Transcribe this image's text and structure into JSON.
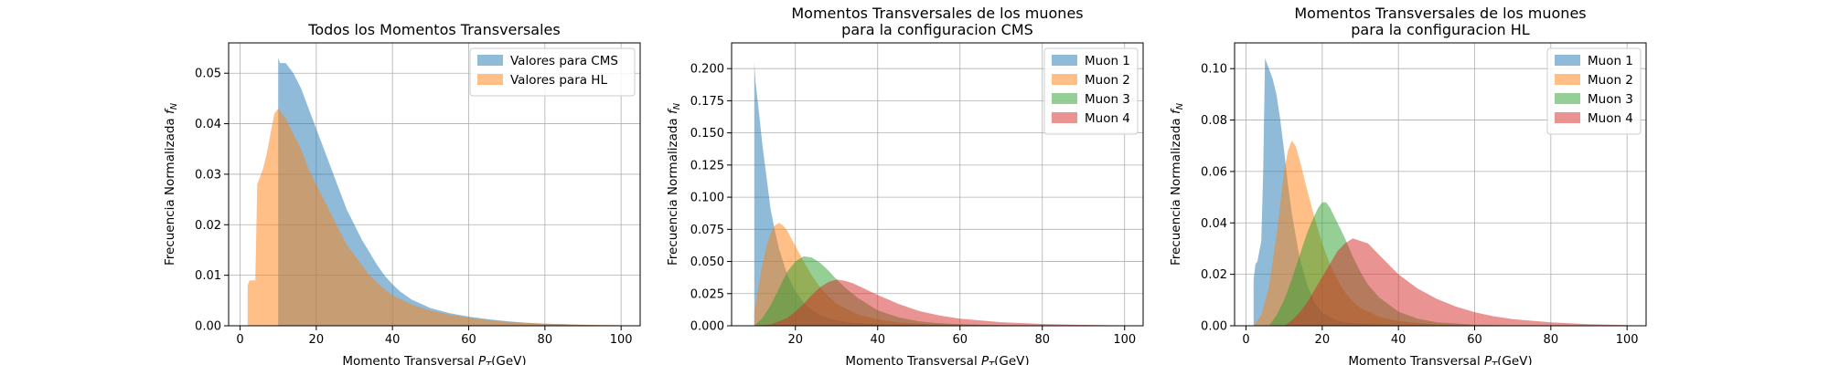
{
  "chart_data": [
    {
      "type": "area",
      "title": "Todos los Momentos Transversales",
      "xlabel": "Momento Transversal $P_T$(GeV)",
      "ylabel": "Frecuencia Normalizada $f_N$",
      "xlim": [
        -3,
        105
      ],
      "ylim": [
        0,
        0.056
      ],
      "xticks": [
        0,
        20,
        40,
        60,
        80,
        100
      ],
      "yticks": [
        0.0,
        0.01,
        0.02,
        0.03,
        0.04,
        0.05
      ],
      "ytick_labels": [
        "0.00",
        "0.01",
        "0.02",
        "0.03",
        "0.04",
        "0.05"
      ],
      "grid": true,
      "legend": "top-right",
      "series": [
        {
          "name": "Valores para CMS",
          "color": "#1f77b4",
          "x": [
            10,
            10.5,
            12,
            14,
            16,
            18,
            20,
            22,
            24,
            26,
            28,
            30,
            32,
            34,
            36,
            38,
            40,
            42,
            45,
            50,
            55,
            60,
            65,
            70,
            75,
            80,
            85,
            90,
            95,
            100
          ],
          "y": [
            0.053,
            0.052,
            0.052,
            0.05,
            0.047,
            0.043,
            0.039,
            0.035,
            0.031,
            0.027,
            0.023,
            0.02,
            0.017,
            0.0145,
            0.012,
            0.0099,
            0.0082,
            0.0068,
            0.0052,
            0.0035,
            0.0025,
            0.0018,
            0.0013,
            0.0009,
            0.0006,
            0.0004,
            0.0003,
            0.0002,
            0.0001,
            0.0001
          ]
        },
        {
          "name": "Valores para HL",
          "color": "#ff7f0e",
          "x": [
            2,
            2.5,
            4,
            4.5,
            6,
            7,
            8,
            9,
            10,
            11,
            12,
            14,
            16,
            18,
            20,
            22,
            24,
            26,
            28,
            30,
            32,
            34,
            36,
            38,
            40,
            45,
            50,
            55,
            60,
            65,
            70,
            80,
            90,
            100
          ],
          "y": [
            0.008,
            0.009,
            0.009,
            0.028,
            0.031,
            0.034,
            0.038,
            0.042,
            0.043,
            0.042,
            0.041,
            0.038,
            0.035,
            0.031,
            0.028,
            0.025,
            0.022,
            0.019,
            0.016,
            0.014,
            0.012,
            0.01,
            0.0085,
            0.0072,
            0.006,
            0.0042,
            0.003,
            0.0022,
            0.0016,
            0.0011,
            0.0008,
            0.0004,
            0.0002,
            0.0001
          ]
        }
      ]
    },
    {
      "type": "area",
      "title": "Momentos Transversales de los muones\npara la configuracion CMS",
      "xlabel": "Momento Transversal $P_T$(GeV)",
      "ylabel": "Frecuencia Normalizada $f_N$",
      "xlim": [
        4.5,
        104.5
      ],
      "ylim": [
        0,
        0.22
      ],
      "xticks": [
        20,
        40,
        60,
        80,
        100
      ],
      "yticks": [
        0.0,
        0.025,
        0.05,
        0.075,
        0.1,
        0.125,
        0.15,
        0.175,
        0.2
      ],
      "ytick_labels": [
        "0.000",
        "0.025",
        "0.050",
        "0.075",
        "0.100",
        "0.125",
        "0.150",
        "0.175",
        "0.200"
      ],
      "grid": true,
      "legend": "top-right",
      "series": [
        {
          "name": "Muon 1",
          "color": "#1f77b4",
          "x": [
            10,
            10.3,
            11,
            12,
            13,
            14,
            15,
            16,
            18,
            20,
            22,
            24,
            26,
            28,
            30,
            35,
            40,
            45,
            50,
            60,
            70,
            80,
            100
          ],
          "y": [
            0.205,
            0.19,
            0.17,
            0.14,
            0.115,
            0.09,
            0.074,
            0.06,
            0.04,
            0.027,
            0.018,
            0.012,
            0.0085,
            0.006,
            0.0042,
            0.002,
            0.0011,
            0.0007,
            0.0004,
            0.0002,
            0.0001,
            5e-05,
            0
          ]
        },
        {
          "name": "Muon 2",
          "color": "#ff7f0e",
          "x": [
            10,
            11,
            12,
            13,
            14,
            15,
            16,
            17,
            18,
            19,
            20,
            22,
            24,
            26,
            28,
            30,
            35,
            40,
            45,
            50,
            60,
            70,
            80,
            100
          ],
          "y": [
            0.01,
            0.03,
            0.048,
            0.062,
            0.072,
            0.078,
            0.08,
            0.078,
            0.074,
            0.068,
            0.062,
            0.05,
            0.039,
            0.03,
            0.023,
            0.017,
            0.009,
            0.005,
            0.0028,
            0.0016,
            0.0006,
            0.0002,
            0.0001,
            0
          ]
        },
        {
          "name": "Muon 3",
          "color": "#2ca02c",
          "x": [
            10,
            12,
            14,
            16,
            18,
            20,
            22,
            24,
            26,
            28,
            30,
            32,
            35,
            40,
            45,
            50,
            55,
            60,
            70,
            80,
            100
          ],
          "y": [
            0.0,
            0.006,
            0.016,
            0.029,
            0.042,
            0.05,
            0.054,
            0.053,
            0.049,
            0.043,
            0.036,
            0.03,
            0.022,
            0.012,
            0.0065,
            0.0035,
            0.002,
            0.0012,
            0.0004,
            0.0002,
            0
          ]
        },
        {
          "name": "Muon 4",
          "color": "#d62728",
          "x": [
            10,
            14,
            18,
            20,
            22,
            24,
            26,
            28,
            30,
            32,
            34,
            36,
            40,
            45,
            50,
            55,
            60,
            70,
            80,
            90,
            100
          ],
          "y": [
            0.0,
            0.001,
            0.006,
            0.011,
            0.017,
            0.024,
            0.03,
            0.034,
            0.036,
            0.035,
            0.033,
            0.03,
            0.024,
            0.017,
            0.0115,
            0.008,
            0.0055,
            0.0028,
            0.0014,
            0.0007,
            0.0003
          ]
        }
      ]
    },
    {
      "type": "area",
      "title": "Momentos Transversales de los muones\npara la configuracion HL",
      "xlabel": "Momento Transversal $P_T$(GeV)",
      "ylabel": "Frecuencia Normalizada $f_N$",
      "xlim": [
        -3,
        105
      ],
      "ylim": [
        0,
        0.11
      ],
      "xticks": [
        0,
        20,
        40,
        60,
        80,
        100
      ],
      "yticks": [
        0.0,
        0.02,
        0.04,
        0.06,
        0.08,
        0.1
      ],
      "ytick_labels": [
        "0.00",
        "0.02",
        "0.04",
        "0.06",
        "0.08",
        "0.10"
      ],
      "grid": true,
      "legend": "top-right",
      "series": [
        {
          "name": "Muon 1",
          "color": "#1f77b4",
          "x": [
            2,
            2.5,
            3,
            4,
            4.5,
            5,
            6,
            7,
            8,
            9,
            10,
            11,
            12,
            14,
            16,
            18,
            20,
            24,
            28,
            35,
            40,
            50,
            60,
            100
          ],
          "y": [
            0.018,
            0.024,
            0.025,
            0.033,
            0.06,
            0.104,
            0.1,
            0.096,
            0.09,
            0.08,
            0.068,
            0.055,
            0.044,
            0.027,
            0.016,
            0.009,
            0.005,
            0.002,
            0.001,
            0.0004,
            0.0002,
            0.0001,
            5e-05,
            0
          ]
        },
        {
          "name": "Muon 2",
          "color": "#ff7f0e",
          "x": [
            2,
            4,
            6,
            8,
            10,
            11,
            12,
            13,
            14,
            16,
            18,
            20,
            22,
            24,
            26,
            28,
            30,
            35,
            40,
            50,
            60,
            100
          ],
          "y": [
            0.0,
            0.004,
            0.015,
            0.035,
            0.06,
            0.068,
            0.072,
            0.07,
            0.065,
            0.053,
            0.042,
            0.032,
            0.024,
            0.018,
            0.013,
            0.0095,
            0.007,
            0.0035,
            0.0018,
            0.0005,
            0.0002,
            0
          ]
        },
        {
          "name": "Muon 3",
          "color": "#2ca02c",
          "x": [
            2,
            6,
            8,
            10,
            12,
            14,
            16,
            18,
            19,
            20,
            21,
            22,
            24,
            26,
            28,
            30,
            32,
            35,
            40,
            45,
            50,
            60,
            70,
            100
          ],
          "y": [
            0.0,
            0.0,
            0.004,
            0.01,
            0.018,
            0.027,
            0.036,
            0.043,
            0.046,
            0.048,
            0.048,
            0.046,
            0.04,
            0.034,
            0.027,
            0.021,
            0.016,
            0.011,
            0.0055,
            0.0028,
            0.0014,
            0.0004,
            0.0001,
            0
          ]
        },
        {
          "name": "Muon 4",
          "color": "#d62728",
          "x": [
            2,
            10,
            12,
            14,
            16,
            18,
            20,
            22,
            24,
            26,
            28,
            30,
            32,
            34,
            36,
            38,
            40,
            45,
            50,
            55,
            60,
            65,
            70,
            80,
            90,
            100
          ],
          "y": [
            0.0,
            0.0,
            0.002,
            0.005,
            0.009,
            0.014,
            0.019,
            0.024,
            0.029,
            0.032,
            0.034,
            0.033,
            0.032,
            0.029,
            0.026,
            0.023,
            0.02,
            0.0145,
            0.0105,
            0.0075,
            0.0053,
            0.0037,
            0.0026,
            0.0013,
            0.0006,
            0.0003
          ]
        }
      ]
    }
  ]
}
